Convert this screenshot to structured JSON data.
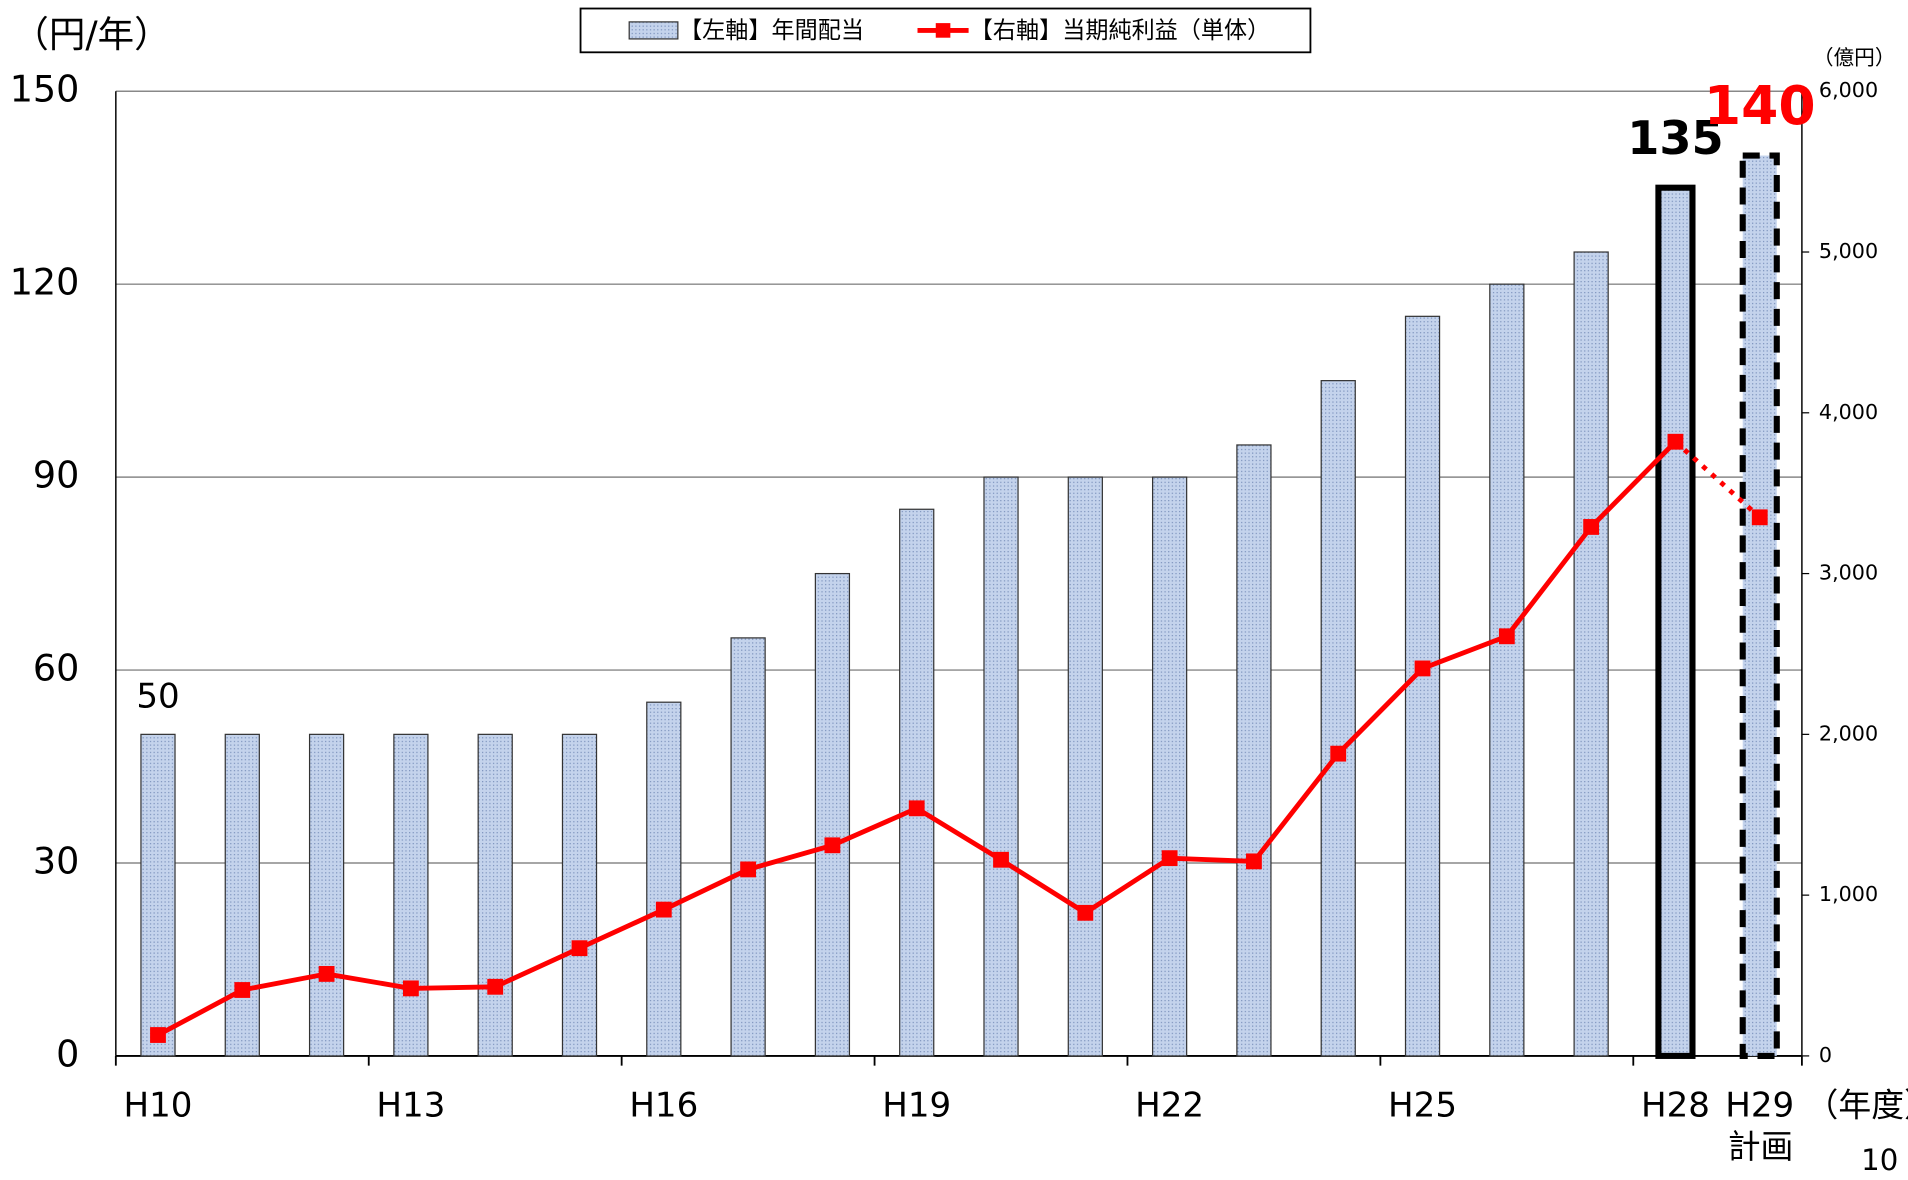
{
  "chart_data": {
    "type": "bar-line",
    "y_label": "（円/年）",
    "y2_label": "（億円）",
    "x_label": "（年度）",
    "forecast_label": "計画",
    "page_number": "10",
    "categories": [
      "H10",
      null,
      null,
      "H13",
      null,
      null,
      "H16",
      null,
      null,
      "H19",
      null,
      null,
      "H22",
      null,
      null,
      "H25",
      null,
      null,
      "H28",
      "H29"
    ],
    "series": [
      {
        "name": "【左軸】年間配当",
        "color": "#b9c9e6",
        "values": [
          50,
          50,
          50,
          50,
          50,
          50,
          55,
          65,
          75,
          85,
          90,
          90,
          90,
          95,
          105,
          115,
          120,
          125,
          135,
          140
        ],
        "value_labels": [
          "50",
          null,
          null,
          null,
          null,
          null,
          null,
          null,
          null,
          null,
          null,
          null,
          null,
          null,
          null,
          null,
          null,
          null,
          "135",
          "140"
        ],
        "value_label_colors": [
          "#000",
          null,
          null,
          null,
          null,
          null,
          null,
          null,
          null,
          null,
          null,
          null,
          null,
          null,
          null,
          null,
          null,
          null,
          "#000",
          "#ff0000"
        ],
        "outlines": [
          null,
          null,
          null,
          null,
          null,
          null,
          null,
          null,
          null,
          null,
          null,
          null,
          null,
          null,
          null,
          null,
          null,
          null,
          "solid",
          "dashed"
        ]
      },
      {
        "name": "【右軸】当期純利益（単体）",
        "color": "#ff0000",
        "axis": "y2",
        "values": [
          130,
          410,
          510,
          420,
          430,
          670,
          910,
          1160,
          1310,
          1540,
          1220,
          890,
          1230,
          1210,
          1880,
          2410,
          2610,
          3290,
          3820,
          3350
        ],
        "styles": [
          "solid",
          "solid",
          "solid",
          "solid",
          "solid",
          "solid",
          "solid",
          "solid",
          "solid",
          "solid",
          "solid",
          "solid",
          "solid",
          "solid",
          "solid",
          "solid",
          "solid",
          "solid",
          "solid",
          "dotted"
        ]
      }
    ],
    "ylim": [
      0,
      150
    ],
    "yticks": [
      0,
      30,
      60,
      90,
      120,
      150
    ],
    "y2lim": [
      0,
      6000
    ],
    "y2ticks": [
      0,
      {
        "value": 1000,
        "label": "1,000"
      },
      {
        "value": 2000,
        "label": "2,000"
      },
      {
        "value": 3000,
        "label": "3,000"
      },
      {
        "value": 4000,
        "label": "4,000"
      },
      {
        "value": 5000,
        "label": "5,000"
      },
      {
        "value": 6000,
        "label": "6,000"
      }
    ],
    "grid": true,
    "legend": "top"
  }
}
